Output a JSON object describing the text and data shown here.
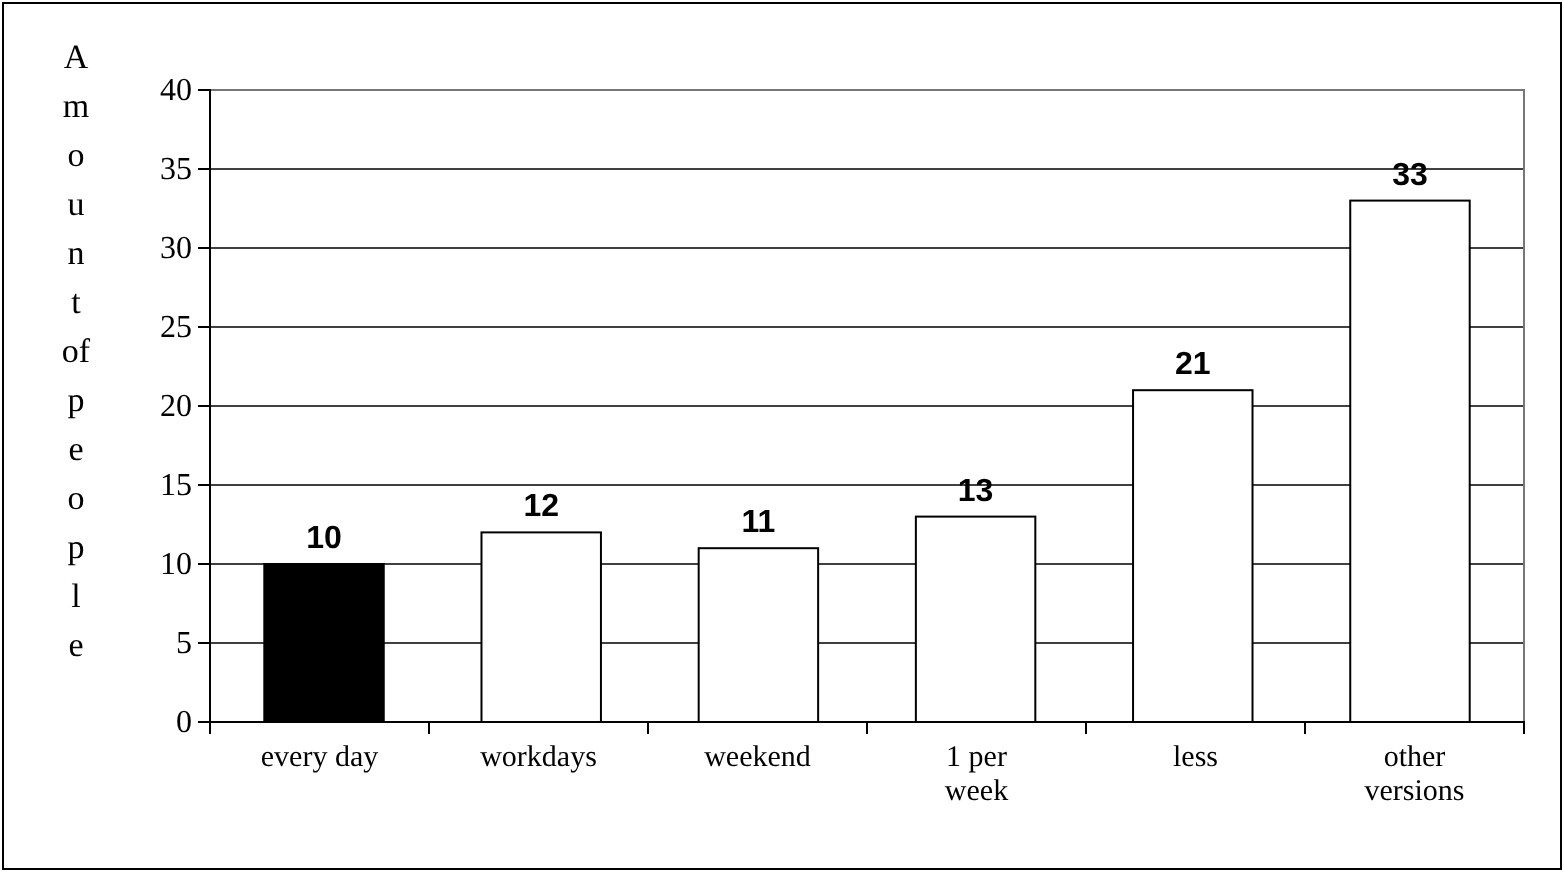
{
  "chart_data": {
    "type": "bar",
    "ylabel": "Amount of people",
    "categories": [
      "every day",
      "workdays",
      "weekend",
      "1 per week",
      "less",
      "other versions"
    ],
    "values": [
      10,
      12,
      11,
      13,
      21,
      33
    ],
    "colors": [
      "#000000",
      "#ffffff",
      "#ffffff",
      "#ffffff",
      "#ffffff",
      "#ffffff"
    ],
    "ylim": [
      0,
      40
    ],
    "yticks": [
      0,
      5,
      10,
      15,
      20,
      25,
      30,
      35,
      40
    ],
    "grid": "y",
    "data_labels": true
  }
}
